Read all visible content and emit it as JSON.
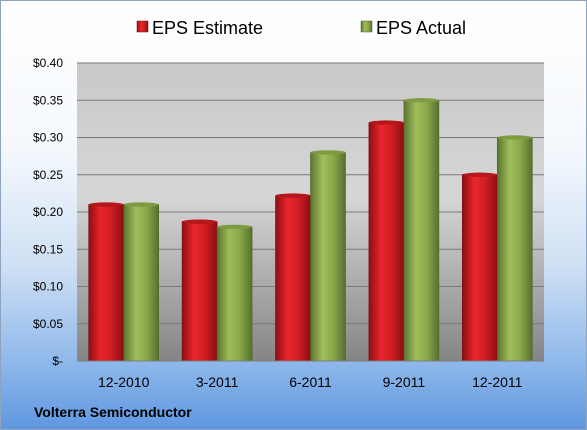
{
  "chart_data": {
    "type": "bar",
    "categories": [
      "12-2010",
      "3-2011",
      "6-2011",
      "9-2011",
      "12-2011"
    ],
    "series": [
      {
        "name": "EPS Estimate",
        "values": [
          0.21,
          0.187,
          0.222,
          0.32,
          0.25
        ],
        "color": "#c0171c"
      },
      {
        "name": "EPS Actual",
        "values": [
          0.21,
          0.18,
          0.28,
          0.35,
          0.3
        ],
        "color": "#8aa64a"
      }
    ],
    "yticks": [
      "$-",
      "$0.05",
      "$0.10",
      "$0.15",
      "$0.20",
      "$0.25",
      "$0.30",
      "$0.35",
      "$0.40"
    ],
    "ylim": [
      0,
      0.4
    ],
    "grid": true,
    "legend_position": "top"
  },
  "footer_text": "Volterra Semiconductor"
}
